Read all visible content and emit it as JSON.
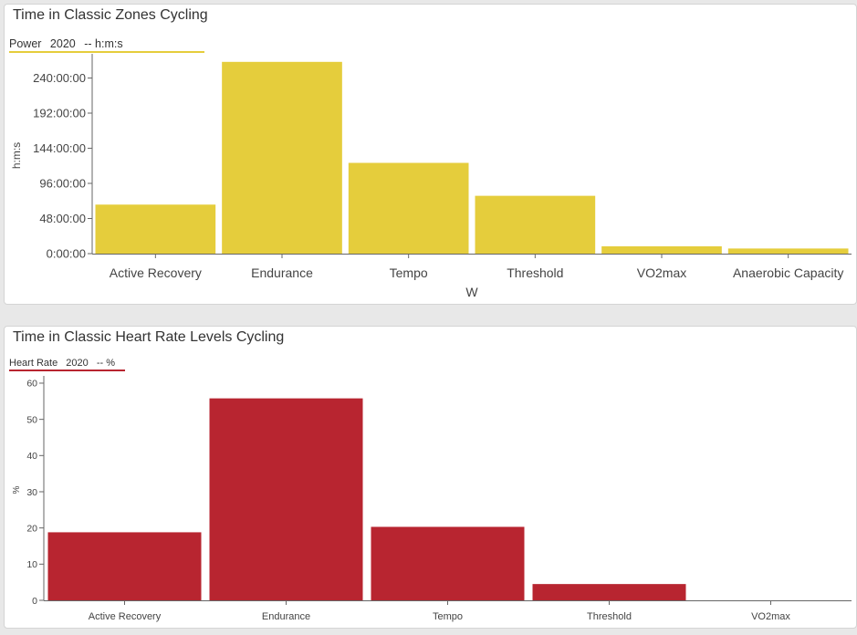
{
  "chart_data": [
    {
      "type": "bar",
      "title": "Time in Classic Zones Cycling",
      "legend": {
        "metric": "Power",
        "year": "2020",
        "unit": "-- h:m:s"
      },
      "categories": [
        "Active Recovery",
        "Endurance",
        "Tempo",
        "Threshold",
        "VO2max",
        "Anaerobic Capacity"
      ],
      "values_hours": [
        67,
        262,
        124,
        79,
        10,
        7
      ],
      "xlabel": "W",
      "ylabel": "h:m:s",
      "yticks": [
        "0:00:00",
        "48:00:00",
        "96:00:00",
        "144:00:00",
        "192:00:00",
        "240:00:00"
      ],
      "ylim": [
        0,
        268
      ],
      "color": "#e5cd3c"
    },
    {
      "type": "bar",
      "title": "Time in Classic Heart Rate Levels Cycling",
      "legend": {
        "metric": "Heart Rate",
        "year": "2020",
        "unit": "-- %"
      },
      "categories": [
        "Active Recovery",
        "Endurance",
        "Tempo",
        "Threshold",
        "VO2max"
      ],
      "values": [
        18.8,
        55.8,
        20.3,
        4.5,
        0
      ],
      "xlabel": "",
      "ylabel": "%",
      "yticks": [
        "0",
        "10",
        "20",
        "30",
        "40",
        "50",
        "60"
      ],
      "ylim": [
        0,
        61
      ],
      "color": "#b82530"
    }
  ]
}
